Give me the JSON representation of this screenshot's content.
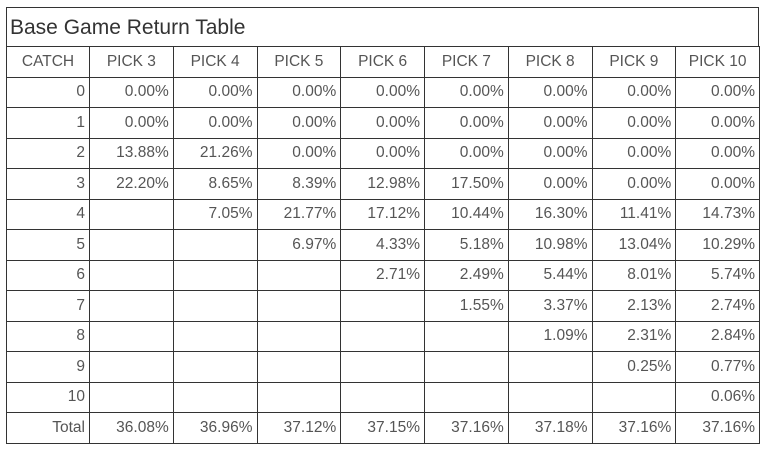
{
  "title": "Base Game Return Table",
  "headers": [
    "CATCH",
    "PICK 3",
    "PICK 4",
    "PICK 5",
    "PICK 6",
    "PICK 7",
    "PICK 8",
    "PICK 9",
    "PICK 10"
  ],
  "rows": [
    [
      "0",
      "0.00%",
      "0.00%",
      "0.00%",
      "0.00%",
      "0.00%",
      "0.00%",
      "0.00%",
      "0.00%"
    ],
    [
      "1",
      "0.00%",
      "0.00%",
      "0.00%",
      "0.00%",
      "0.00%",
      "0.00%",
      "0.00%",
      "0.00%"
    ],
    [
      "2",
      "13.88%",
      "21.26%",
      "0.00%",
      "0.00%",
      "0.00%",
      "0.00%",
      "0.00%",
      "0.00%"
    ],
    [
      "3",
      "22.20%",
      "8.65%",
      "8.39%",
      "12.98%",
      "17.50%",
      "0.00%",
      "0.00%",
      "0.00%"
    ],
    [
      "4",
      "",
      "7.05%",
      "21.77%",
      "17.12%",
      "10.44%",
      "16.30%",
      "11.41%",
      "14.73%"
    ],
    [
      "5",
      "",
      "",
      "6.97%",
      "4.33%",
      "5.18%",
      "10.98%",
      "13.04%",
      "10.29%"
    ],
    [
      "6",
      "",
      "",
      "",
      "2.71%",
      "2.49%",
      "5.44%",
      "8.01%",
      "5.74%"
    ],
    [
      "7",
      "",
      "",
      "",
      "",
      "1.55%",
      "3.37%",
      "2.13%",
      "2.74%"
    ],
    [
      "8",
      "",
      "",
      "",
      "",
      "",
      "1.09%",
      "2.31%",
      "2.84%"
    ],
    [
      "9",
      "",
      "",
      "",
      "",
      "",
      "",
      "0.25%",
      "0.77%"
    ],
    [
      "10",
      "",
      "",
      "",
      "",
      "",
      "",
      "",
      "0.06%"
    ],
    [
      "Total",
      "36.08%",
      "36.96%",
      "37.12%",
      "37.15%",
      "37.16%",
      "37.18%",
      "37.16%",
      "37.16%"
    ]
  ]
}
